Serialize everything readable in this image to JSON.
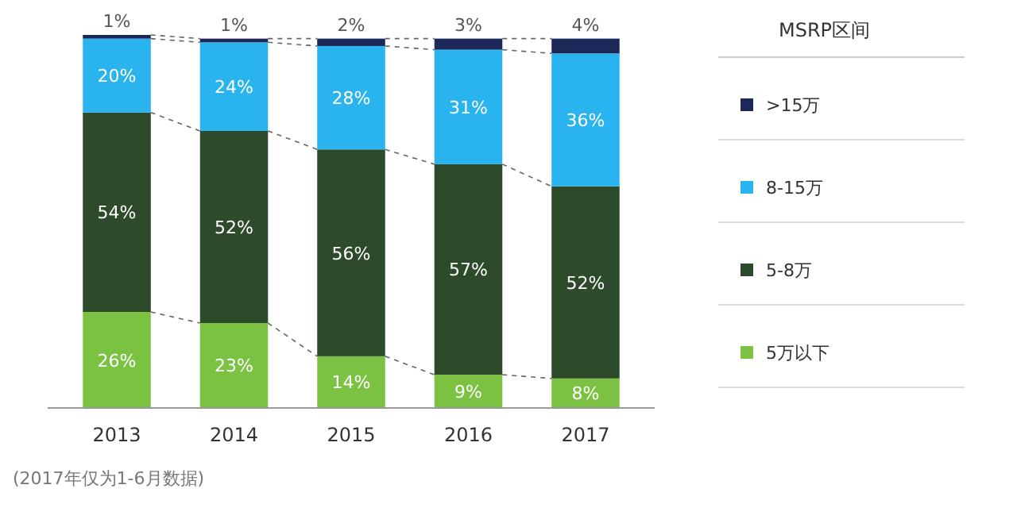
{
  "chart_data": {
    "type": "bar",
    "stacked": true,
    "legend": "right",
    "legend_title": "MSRP区间",
    "categories": [
      "2013",
      "2014",
      "2015",
      "2016",
      "2017"
    ],
    "series": [
      {
        "name": "5万以下",
        "color": "#7cc242",
        "values": [
          26,
          23,
          14,
          9,
          8
        ],
        "value_labels": [
          "26%",
          "23%",
          "14%",
          "9%",
          "8%"
        ]
      },
      {
        "name": "5-8万",
        "color": "#2d4a2b",
        "values": [
          54,
          52,
          56,
          57,
          52
        ],
        "value_labels": [
          "54%",
          "52%",
          "56%",
          "57%",
          "52%"
        ]
      },
      {
        "name": "8-15万",
        "color": "#2ab4ef",
        "values": [
          20,
          24,
          28,
          31,
          36
        ],
        "value_labels": [
          "20%",
          "24%",
          "28%",
          "31%",
          "36%"
        ]
      },
      {
        "name": ">15万",
        "color": "#1c2858",
        "values": [
          1,
          1,
          2,
          3,
          4
        ],
        "value_labels": [
          "1%",
          "1%",
          "2%",
          "3%",
          "4%"
        ]
      }
    ],
    "annotations": [
      "(2017年仅为1-6月数据)"
    ]
  }
}
